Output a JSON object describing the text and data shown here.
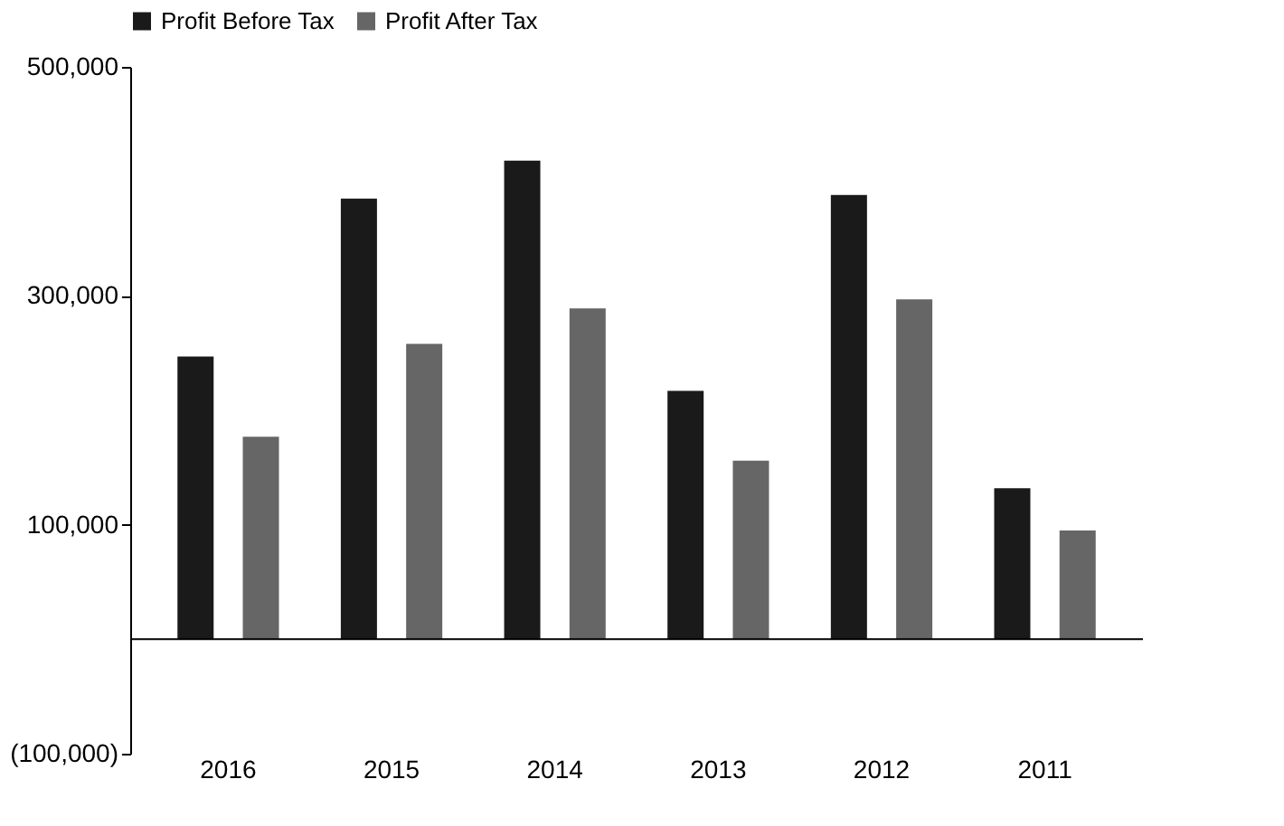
{
  "chart_data": {
    "type": "bar",
    "categories": [
      "2016",
      "2015",
      "2014",
      "2013",
      "2012",
      "2011"
    ],
    "series": [
      {
        "name": "Profit Before Tax",
        "color": "#1a1a1a",
        "values": [
          247000,
          385000,
          418000,
          217000,
          388000,
          132000
        ]
      },
      {
        "name": "Profit After Tax",
        "color": "#666666",
        "values": [
          177000,
          258000,
          289000,
          156000,
          297000,
          95000
        ]
      }
    ],
    "ylim": [
      -100000,
      500000
    ],
    "yticks": [
      {
        "value": -100000,
        "label": "(100,000)"
      },
      {
        "value": 100000,
        "label": "100,000"
      },
      {
        "value": 300000,
        "label": "300,000"
      },
      {
        "value": 500000,
        "label": "500,000"
      }
    ],
    "ref_lines": [
      {
        "axis": "y",
        "value": 0,
        "color": "#000000"
      }
    ],
    "grid": false,
    "legend": "top"
  }
}
